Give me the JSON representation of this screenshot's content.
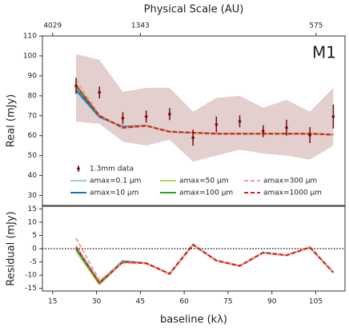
{
  "chart_data": [
    {
      "type": "line",
      "x2label": "Physical Scale (AU)",
      "ylabel": "Real (mJy)",
      "annotation": "M1",
      "x": [
        23,
        31,
        39,
        47,
        55,
        63,
        71,
        79,
        87,
        95,
        103,
        111
      ],
      "xlim": [
        11.5,
        115
      ],
      "x2lim": [
        5255,
        525.5
      ],
      "x2scale": "reciprocal",
      "x2ticks": [
        4029,
        1343,
        575
      ],
      "ylim": [
        25,
        110
      ],
      "yticks": [
        30,
        40,
        50,
        60,
        70,
        80,
        90,
        100,
        110
      ],
      "band": {
        "color": "#c9a0a0",
        "upper": [
          101,
          98,
          82,
          84,
          84,
          72,
          79,
          80,
          74,
          78,
          72,
          84
        ],
        "lower": [
          67,
          66,
          57,
          55,
          58,
          47,
          50,
          53,
          51,
          50,
          48,
          55
        ]
      },
      "data": {
        "name": "1.3mm data",
        "color": "#7a0a0a",
        "values": [
          85,
          81.7,
          68.8,
          69.6,
          70.8,
          59,
          65.6,
          67.2,
          62.3,
          64,
          60.3,
          69.6
        ],
        "errors": [
          4,
          3,
          3,
          3,
          3,
          4,
          4,
          3,
          3,
          4,
          4,
          6
        ]
      },
      "legend": "lower center",
      "series": [
        {
          "name": "amax=0.1 μm",
          "color": "#9ecae1",
          "dash": false,
          "values": [
            82,
            69,
            64.5,
            65,
            62,
            61.5,
            61,
            61,
            61,
            61,
            61,
            60.5
          ]
        },
        {
          "name": "amax=10 μm",
          "color": "#2171b5",
          "dash": false,
          "values": [
            83,
            69.5,
            64.5,
            65,
            62,
            61.5,
            61,
            61,
            61,
            61,
            61,
            60.5
          ]
        },
        {
          "name": "amax=50 μm",
          "color": "#b5d96b",
          "dash": false,
          "values": [
            86,
            70,
            64,
            65,
            62,
            61.5,
            61,
            61,
            61,
            61,
            61,
            60.5
          ]
        },
        {
          "name": "amax=100 μm",
          "color": "#33a02c",
          "dash": false,
          "values": [
            85,
            70,
            64,
            65,
            62,
            61.5,
            61,
            61,
            61,
            61,
            61,
            60.5
          ]
        },
        {
          "name": "amax=300 μm",
          "color": "#fb9a99",
          "dash": true,
          "values": [
            88,
            70.5,
            64,
            65,
            62,
            61.5,
            61,
            61,
            61,
            61,
            61,
            60.5
          ]
        },
        {
          "name": "amax=1000 μm",
          "color": "#e31a1c",
          "dash": true,
          "values": [
            85,
            70,
            64,
            65,
            62,
            61.5,
            61,
            61,
            61,
            61,
            61,
            60.5
          ]
        }
      ]
    },
    {
      "type": "line",
      "ylabel": "Residual (mJy)",
      "xlabel": "baseline (kλ)",
      "x": [
        23,
        31,
        39,
        47,
        55,
        63,
        71,
        79,
        87,
        95,
        103,
        111
      ],
      "xlim": [
        11.5,
        115
      ],
      "xticks": [
        15,
        30,
        45,
        60,
        75,
        90,
        105
      ],
      "ylim": [
        -16,
        16
      ],
      "yticks": [
        -15,
        -10,
        -5,
        0,
        5,
        10,
        15
      ],
      "hline": 0,
      "series": [
        {
          "color": "#9ecae1",
          "dash": false,
          "values": [
            1,
            -12.5,
            -4.5,
            -5.5,
            -9.5,
            1.5,
            -4.5,
            -6.5,
            -1.5,
            -2.5,
            0.5,
            -9
          ]
        },
        {
          "color": "#2171b5",
          "dash": false,
          "values": [
            0,
            -13,
            -5,
            -5.5,
            -9.5,
            1.5,
            -4.5,
            -6.5,
            -1.5,
            -2.5,
            0.5,
            -9
          ]
        },
        {
          "color": "#b5d96b",
          "dash": false,
          "values": [
            -1,
            -13.5,
            -5,
            -5.5,
            -9.5,
            1.5,
            -4.5,
            -6.5,
            -1.5,
            -2.5,
            0.5,
            -9
          ]
        },
        {
          "color": "#33a02c",
          "dash": false,
          "values": [
            0,
            -13,
            -5,
            -5.5,
            -9.5,
            1.5,
            -4.5,
            -6.5,
            -1.5,
            -2.5,
            0.5,
            -9
          ]
        },
        {
          "color": "#fb9a99",
          "dash": true,
          "values": [
            4,
            -12,
            -5.5,
            -5.5,
            -9.5,
            1.5,
            -4.5,
            -6.5,
            -1.5,
            -2.5,
            0.5,
            -9
          ]
        },
        {
          "color": "#e31a1c",
          "dash": true,
          "values": [
            0.5,
            -13,
            -5,
            -5.5,
            -9.5,
            1.5,
            -4.5,
            -6.5,
            -1.5,
            -2.5,
            0.5,
            -9
          ]
        }
      ]
    }
  ]
}
